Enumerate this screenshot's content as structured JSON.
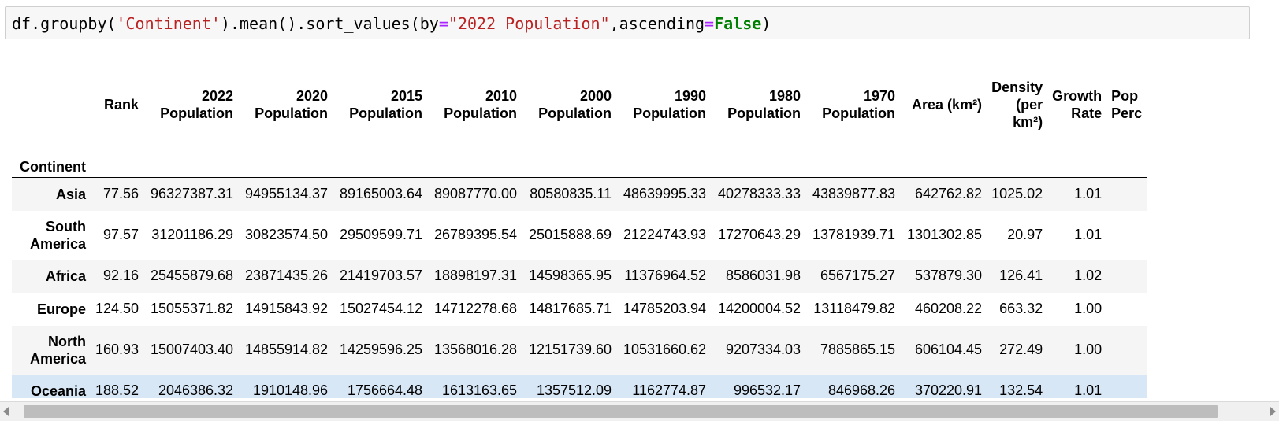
{
  "code": {
    "tokens": [
      {
        "t": "df.groupby(",
        "c": ""
      },
      {
        "t": "'Continent'",
        "c": "str"
      },
      {
        "t": ").mean().sort_values(by",
        "c": ""
      },
      {
        "t": "=",
        "c": "op"
      },
      {
        "t": "\"2022 Population\"",
        "c": "str"
      },
      {
        "t": ",ascending",
        "c": ""
      },
      {
        "t": "=",
        "c": "op"
      },
      {
        "t": "False",
        "c": "kw"
      },
      {
        "t": ")",
        "c": ""
      }
    ]
  },
  "table": {
    "index_name": "Continent",
    "columns": [
      {
        "label": "Rank",
        "width": 60
      },
      {
        "label": "2022 Population",
        "width": 120
      },
      {
        "label": "2020 Population",
        "width": 120
      },
      {
        "label": "2015 Population",
        "width": 120
      },
      {
        "label": "2010 Population",
        "width": 120
      },
      {
        "label": "2000 Population",
        "width": 120
      },
      {
        "label": "1990 Population",
        "width": 120
      },
      {
        "label": "1980 Population",
        "width": 120
      },
      {
        "label": "1970 Population",
        "width": 120
      },
      {
        "label": "Area (km²)",
        "width": 110
      },
      {
        "label": "Density (per km²)",
        "width": 75
      },
      {
        "label": "Growth Rate",
        "width": 75
      },
      {
        "label": "Pop Perc",
        "width": 50,
        "cut": true
      }
    ],
    "rows": [
      {
        "index": "Asia",
        "values": [
          "77.56",
          "96327387.31",
          "94955134.37",
          "89165003.64",
          "89087770.00",
          "80580835.11",
          "48639995.33",
          "40278333.33",
          "43839877.83",
          "642762.82",
          "1025.02",
          "1.01",
          ""
        ]
      },
      {
        "index": "South America",
        "values": [
          "97.57",
          "31201186.29",
          "30823574.50",
          "29509599.71",
          "26789395.54",
          "25015888.69",
          "21224743.93",
          "17270643.29",
          "13781939.71",
          "1301302.85",
          "20.97",
          "1.01",
          ""
        ]
      },
      {
        "index": "Africa",
        "values": [
          "92.16",
          "25455879.68",
          "23871435.26",
          "21419703.57",
          "18898197.31",
          "14598365.95",
          "11376964.52",
          "8586031.98",
          "6567175.27",
          "537879.30",
          "126.41",
          "1.02",
          ""
        ]
      },
      {
        "index": "Europe",
        "values": [
          "124.50",
          "15055371.82",
          "14915843.92",
          "15027454.12",
          "14712278.68",
          "14817685.71",
          "14785203.94",
          "14200004.52",
          "13118479.82",
          "460208.22",
          "663.32",
          "1.00",
          ""
        ]
      },
      {
        "index": "North America",
        "values": [
          "160.93",
          "15007403.40",
          "14855914.82",
          "14259596.25",
          "13568016.28",
          "12151739.60",
          "10531660.62",
          "9207334.03",
          "7885865.15",
          "606104.45",
          "272.49",
          "1.00",
          ""
        ]
      },
      {
        "index": "Oceania",
        "values": [
          "188.52",
          "2046386.32",
          "1910148.96",
          "1756664.48",
          "1613163.65",
          "1357512.09",
          "1162774.87",
          "996532.17",
          "846968.26",
          "370220.91",
          "132.54",
          "1.01",
          ""
        ]
      }
    ],
    "highlighted_row": 5
  }
}
